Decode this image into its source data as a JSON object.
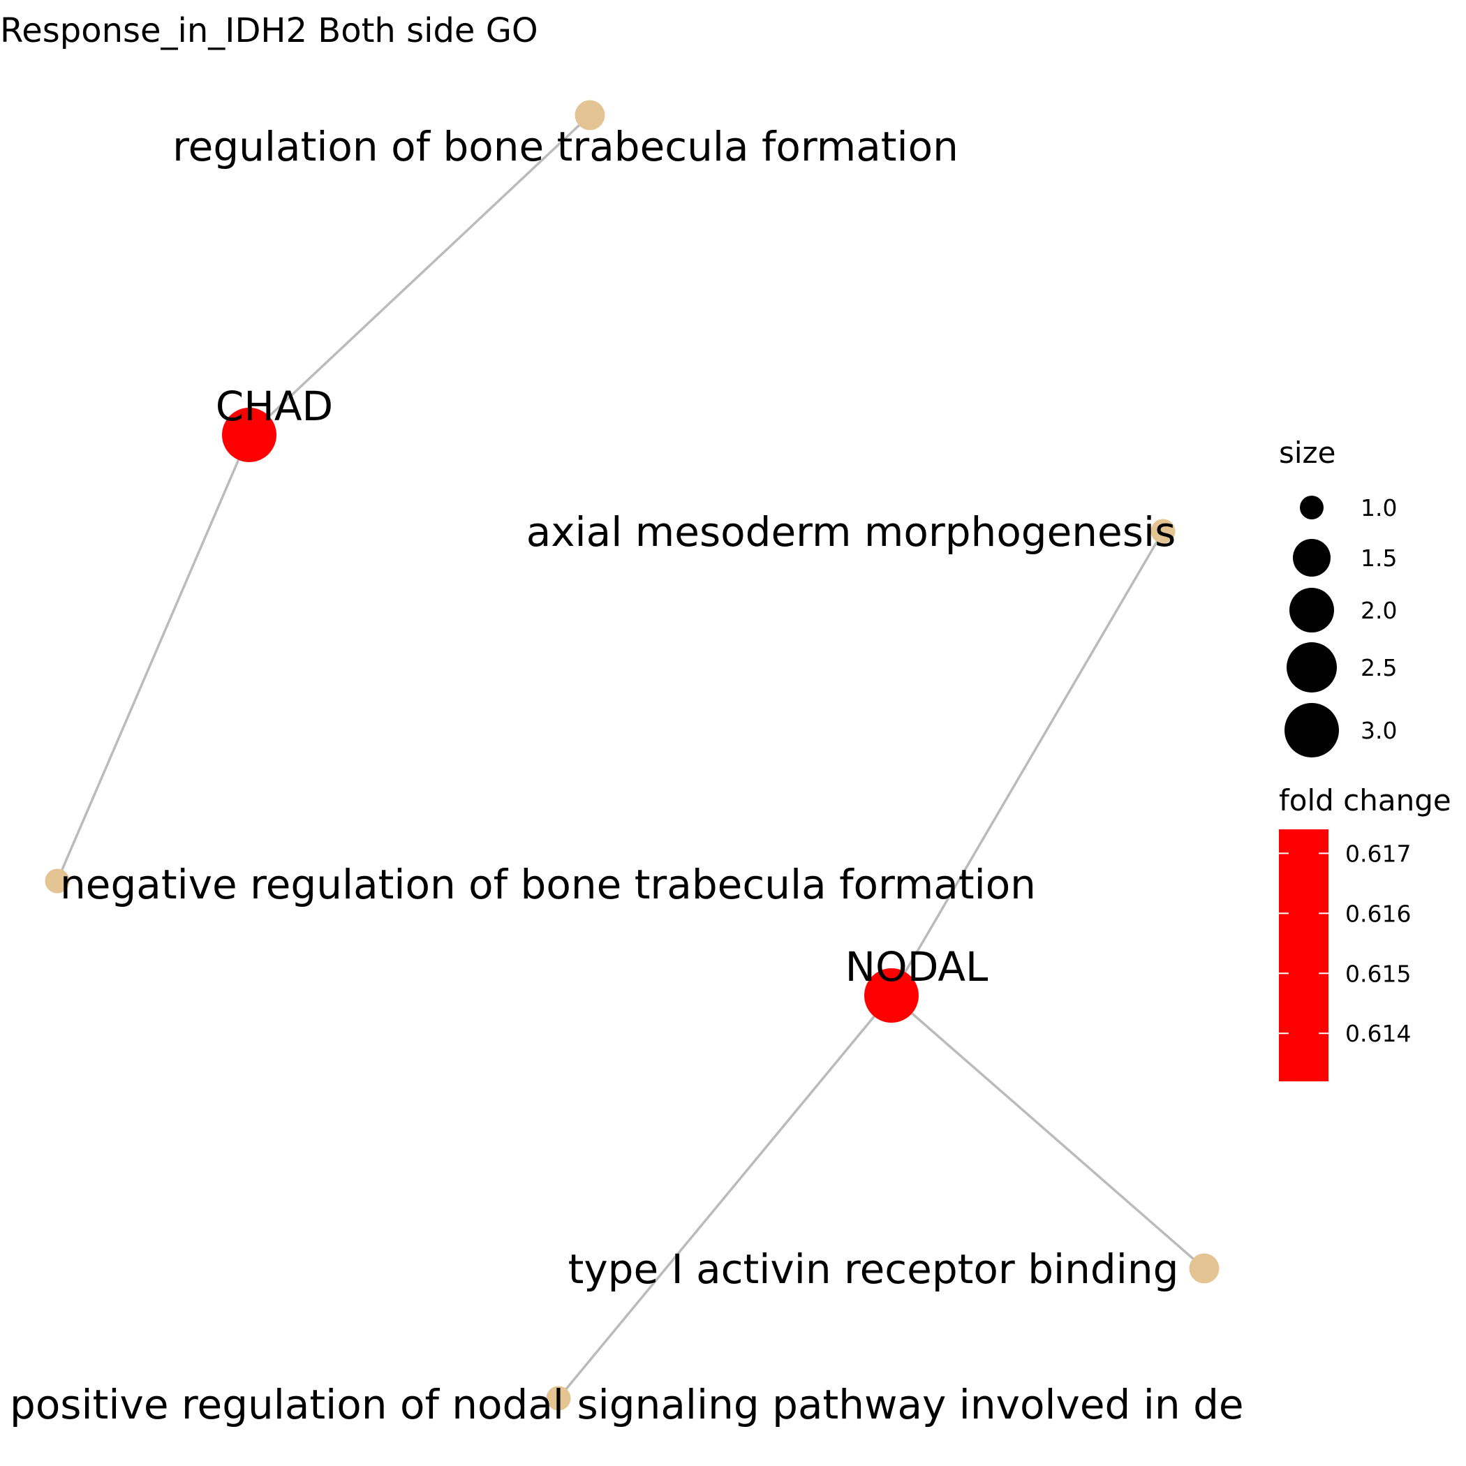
{
  "title": "Response_in_IDH2 Both side GO",
  "colors": {
    "gene": "#FF0000",
    "category": "#E5C494",
    "edge": "#BBBBBB",
    "legend_dot": "#000000"
  },
  "network": {
    "genes": [
      {
        "id": "CHAD",
        "label": "CHAD",
        "size": 3.0,
        "fold_change": 0.617
      },
      {
        "id": "NODAL",
        "label": "NODAL",
        "size": 3.0,
        "fold_change": 0.614
      }
    ],
    "categories": [
      {
        "id": "c1",
        "label": "regulation of bone trabecula formation",
        "size": 1.5
      },
      {
        "id": "c2",
        "label": "negative regulation of bone trabecula formation",
        "size": 1.0
      },
      {
        "id": "c3",
        "label": "axial mesoderm morphogenesis",
        "size": 1.0
      },
      {
        "id": "c4",
        "label": "type I activin receptor binding",
        "size": 1.5
      },
      {
        "id": "c5",
        "label": "positive regulation of nodal signaling pathway involved in de",
        "size": 1.0
      }
    ],
    "edges": [
      {
        "from": "CHAD",
        "to": "c1"
      },
      {
        "from": "CHAD",
        "to": "c2"
      },
      {
        "from": "NODAL",
        "to": "c3"
      },
      {
        "from": "NODAL",
        "to": "c4"
      },
      {
        "from": "NODAL",
        "to": "c5"
      }
    ]
  },
  "legend": {
    "size": {
      "title": "size",
      "entries": [
        {
          "value": 1.0,
          "label": "1.0"
        },
        {
          "value": 1.5,
          "label": "1.5"
        },
        {
          "value": 2.0,
          "label": "2.0"
        },
        {
          "value": 2.5,
          "label": "2.5"
        },
        {
          "value": 3.0,
          "label": "3.0"
        }
      ]
    },
    "fold_change": {
      "title": "fold change",
      "range": [
        0.6132,
        0.6174
      ],
      "ticks": [
        {
          "value": 0.617,
          "label": "0.617"
        },
        {
          "value": 0.616,
          "label": "0.616"
        },
        {
          "value": 0.615,
          "label": "0.615"
        },
        {
          "value": 0.614,
          "label": "0.614"
        }
      ]
    }
  }
}
